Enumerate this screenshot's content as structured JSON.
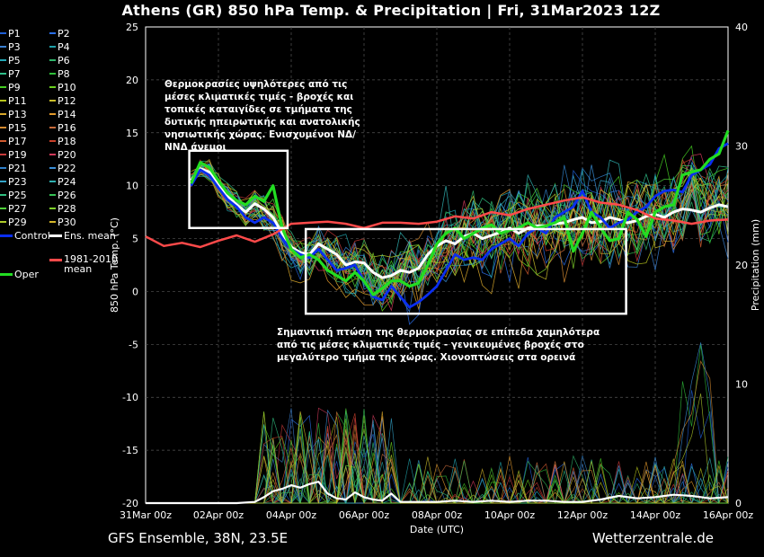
{
  "title": "Athens  (GR)  850 hPa Temp. & Precipitation | Fri, 31Mar2023 12Z",
  "footer": {
    "left": "GFS Ensemble, 38N, 23.5E",
    "right": "Wetterzentrale.de"
  },
  "annotations": {
    "top": "Θερμοκρασίες υψηλότερες από τις μέσες κλιματικές τιμές - βροχές και τοπικές καταιγίδες σε τμήματα της δυτικής ηπειρωτικής και ανατολικής νησιωτικής χώρας. Ενισχυμένοι ΝΔ/ΝΝΔ άνεμοι",
    "bottom": "Σημαντική πτώση της θερμοκρασίας σε επίπεδα χαμηλότερα από τις μέσες κλιματικές τιμές - γενικευμένες βροχές στο μεγαλύτερο τμήμα της χώρας. Χιονοπτώσεις στα ορεινά"
  },
  "legend": [
    {
      "label": "P1",
      "color": "#1f5fd6"
    },
    {
      "label": "P2",
      "color": "#2a6fe8"
    },
    {
      "label": "P3",
      "color": "#3a7fd0"
    },
    {
      "label": "P4",
      "color": "#1fa0a8"
    },
    {
      "label": "P5",
      "color": "#22a7b5"
    },
    {
      "label": "P6",
      "color": "#2fb46a"
    },
    {
      "label": "P7",
      "color": "#2fbf8a"
    },
    {
      "label": "P8",
      "color": "#2fbf3a"
    },
    {
      "label": "P9",
      "color": "#44cc22"
    },
    {
      "label": "P10",
      "color": "#6ad11f"
    },
    {
      "label": "P11",
      "color": "#b7c41c"
    },
    {
      "label": "P12",
      "color": "#c9bd2a"
    },
    {
      "label": "P13",
      "color": "#d9a82a"
    },
    {
      "label": "P14",
      "color": "#e39a2b"
    },
    {
      "label": "P15",
      "color": "#d48a30"
    },
    {
      "label": "P16",
      "color": "#c76a3a"
    },
    {
      "label": "P17",
      "color": "#d05a2f"
    },
    {
      "label": "P18",
      "color": "#c8402a"
    },
    {
      "label": "P19",
      "color": "#c83a3a"
    },
    {
      "label": "P20",
      "color": "#d03a5a"
    },
    {
      "label": "P21",
      "color": "#2f7fc8"
    },
    {
      "label": "P22",
      "color": "#3a8fd8"
    },
    {
      "label": "P23",
      "color": "#33a3c8"
    },
    {
      "label": "P24",
      "color": "#2fb0b0"
    },
    {
      "label": "P25",
      "color": "#2fbf80"
    },
    {
      "label": "P26",
      "color": "#35c155"
    },
    {
      "label": "P27",
      "color": "#4fcf3a"
    },
    {
      "label": "P28",
      "color": "#7ed02a"
    },
    {
      "label": "P29",
      "color": "#b0cc2a"
    },
    {
      "label": "P30",
      "color": "#d6b82a"
    },
    {
      "label": "Control",
      "color": "#0a2ef0"
    },
    {
      "label": "Ens. mean",
      "color": "#ffffff"
    },
    {
      "label": "1981-2010 mean",
      "color": "#ff4a4a"
    },
    {
      "label": "Oper",
      "color": "#22dd22"
    }
  ],
  "chart_data": {
    "type": "line",
    "xlabel": "Date (UTC)",
    "ylabel": "850 hPa Temp. (°C)",
    "y2label": "Precipitation (mm)",
    "ylim": [
      -20,
      25
    ],
    "y2lim": [
      0,
      40
    ],
    "x_range_days": [
      0,
      16
    ],
    "xticks": [
      "31Mar 00z",
      "02Apr 00z",
      "04Apr 00z",
      "06Apr 00z",
      "08Apr 00z",
      "10Apr 00z",
      "12Apr 00z",
      "14Apr 00z",
      "16Apr 00z"
    ],
    "yticks": [
      25,
      20,
      15,
      10,
      5,
      0,
      -5,
      -10,
      -15,
      -20
    ],
    "y2ticks": [
      40,
      30,
      20,
      10,
      0
    ],
    "grid": true,
    "boxes": [
      {
        "day_start": 1.2,
        "day_end": 3.9,
        "t_top": 13.3,
        "t_bottom": 6.0
      },
      {
        "day_start": 4.4,
        "day_end": 13.2,
        "t_top": 5.9,
        "t_bottom": -2.1
      }
    ],
    "series": [
      {
        "name": "Ens. mean",
        "color": "#ffffff",
        "x": [
          1.25,
          1.5,
          1.75,
          2.0,
          2.25,
          2.5,
          2.75,
          3.0,
          3.25,
          3.5,
          3.75,
          4.0,
          4.25,
          4.5,
          4.75,
          5.0,
          5.25,
          5.5,
          5.75,
          6.0,
          6.25,
          6.5,
          6.75,
          7.0,
          7.25,
          7.5,
          7.75,
          8.0,
          8.25,
          8.5,
          8.75,
          9.0,
          9.25,
          9.5,
          9.75,
          10.0,
          10.25,
          10.5,
          10.75,
          11.0,
          11.25,
          11.5,
          11.75,
          12.0,
          12.25,
          12.5,
          12.75,
          13.0,
          13.25,
          13.5,
          13.75,
          14.0,
          14.25,
          14.5,
          14.75,
          15.0,
          15.25,
          15.5,
          15.75,
          16.0
        ],
        "y": [
          10.5,
          11.6,
          11.3,
          10.0,
          9.0,
          8.2,
          7.5,
          8.3,
          7.8,
          7.0,
          5.5,
          4.2,
          3.7,
          3.5,
          4.5,
          4.0,
          3.5,
          2.5,
          2.8,
          2.7,
          1.8,
          1.3,
          1.5,
          2.0,
          1.8,
          2.2,
          3.5,
          4.3,
          4.8,
          4.5,
          5.2,
          5.5,
          5.0,
          5.3,
          5.6,
          6.0,
          5.5,
          6.0,
          6.2,
          6.2,
          6.4,
          6.5,
          6.8,
          7.0,
          6.5,
          6.6,
          7.0,
          6.8,
          6.5,
          6.7,
          7.1,
          7.3,
          7.0,
          7.5,
          7.8,
          7.7,
          7.5,
          7.9,
          8.2,
          8.0
        ]
      },
      {
        "name": "Control",
        "color": "#0a2ef0",
        "x": [
          1.25,
          1.5,
          1.75,
          2.0,
          2.25,
          2.5,
          2.75,
          3.0,
          3.25,
          3.5,
          3.75,
          4.0,
          4.25,
          4.5,
          4.75,
          5.0,
          5.25,
          5.5,
          5.75,
          6.0,
          6.25,
          6.5,
          6.75,
          7.0,
          7.25,
          7.5,
          7.75,
          8.0,
          8.25,
          8.5,
          8.75,
          9.0,
          9.25,
          9.5,
          9.75,
          10.0,
          10.25,
          10.5,
          10.75,
          11.0,
          11.25,
          11.5,
          11.75,
          12.0,
          12.25,
          12.5,
          12.75,
          13.0,
          13.25,
          13.5,
          13.75,
          14.0,
          14.25,
          14.5,
          14.75,
          15.0,
          15.25,
          15.5,
          15.75,
          16.0
        ],
        "y": [
          10.0,
          11.5,
          11.0,
          9.8,
          8.7,
          8.0,
          7.0,
          6.5,
          7.0,
          6.5,
          5.0,
          4.0,
          3.5,
          3.2,
          4.0,
          3.0,
          2.0,
          2.2,
          2.5,
          1.0,
          -0.5,
          -0.8,
          0.5,
          -0.5,
          -1.5,
          -1.0,
          -0.3,
          0.5,
          2.0,
          3.5,
          3.0,
          3.2,
          3.0,
          4.0,
          4.5,
          5.0,
          4.3,
          5.5,
          6.0,
          5.5,
          7.0,
          7.5,
          8.0,
          9.5,
          7.5,
          7.0,
          6.0,
          6.5,
          6.8,
          7.5,
          8.0,
          9.0,
          9.5,
          9.6,
          9.4,
          11.0,
          11.5,
          12.0,
          13.5,
          14.0
        ]
      },
      {
        "name": "Oper",
        "color": "#22dd22",
        "x": [
          1.25,
          1.5,
          1.75,
          2.0,
          2.25,
          2.5,
          2.75,
          3.0,
          3.25,
          3.5,
          3.75,
          4.0,
          4.25,
          4.5,
          4.75,
          5.0,
          5.25,
          5.5,
          5.75,
          6.0,
          6.25,
          6.5,
          6.75,
          7.0,
          7.25,
          7.5,
          7.75,
          8.0,
          8.25,
          8.5,
          8.75,
          9.0,
          9.25,
          9.5,
          9.75,
          10.0,
          10.25,
          10.5,
          10.75,
          11.0,
          11.25,
          11.5,
          11.75,
          12.0,
          12.25,
          12.5,
          12.75,
          13.0,
          13.25,
          13.5,
          13.75,
          14.0,
          14.25,
          14.5,
          14.75,
          15.0,
          15.25,
          15.5,
          15.75,
          16.0
        ],
        "y": [
          10.2,
          12.2,
          11.7,
          10.5,
          9.3,
          8.6,
          8.2,
          9.0,
          8.5,
          10.0,
          6.0,
          4.0,
          3.2,
          3.5,
          3.0,
          2.0,
          1.5,
          1.0,
          1.8,
          1.0,
          -0.3,
          0.3,
          1.0,
          1.0,
          0.5,
          0.8,
          2.5,
          4.5,
          5.5,
          6.0,
          5.0,
          5.5,
          6.0,
          6.3,
          5.5,
          5.8,
          6.0,
          6.5,
          6.0,
          6.2,
          6.5,
          7.0,
          3.8,
          5.5,
          7.5,
          6.0,
          4.8,
          5.0,
          7.5,
          6.8,
          5.2,
          7.5,
          8.0,
          8.2,
          11.0,
          11.3,
          11.5,
          12.5,
          13.0,
          15.2
        ]
      },
      {
        "name": "1981-2010 mean",
        "color": "#ff4a4a",
        "x": [
          0,
          0.5,
          1.0,
          1.5,
          2.0,
          2.5,
          3.0,
          3.5,
          4.0,
          4.5,
          5.0,
          5.5,
          6.0,
          6.5,
          7.0,
          7.5,
          8.0,
          8.5,
          9.0,
          9.5,
          10.0,
          10.5,
          11.0,
          11.5,
          12.0,
          12.5,
          13.0,
          13.5,
          14.0,
          14.5,
          15.0,
          15.5,
          16.0
        ],
        "y": [
          5.2,
          4.3,
          4.6,
          4.2,
          4.8,
          5.3,
          4.7,
          5.4,
          6.4,
          6.5,
          6.6,
          6.4,
          6.0,
          6.5,
          6.5,
          6.4,
          6.6,
          7.1,
          6.9,
          7.5,
          7.2,
          7.8,
          8.2,
          8.6,
          8.9,
          8.4,
          8.2,
          7.7,
          6.9,
          6.7,
          6.4,
          6.7,
          6.8
        ]
      },
      {
        "name": "Ens. mean precip",
        "color": "#ffffff",
        "axis": "y2",
        "x": [
          0,
          1,
          2,
          2.5,
          3,
          3.25,
          3.5,
          3.75,
          4,
          4.25,
          4.5,
          4.75,
          5,
          5.25,
          5.5,
          5.75,
          6,
          6.25,
          6.5,
          6.75,
          7,
          7.5,
          8,
          8.5,
          9,
          9.5,
          10,
          10.5,
          11,
          11.5,
          12,
          12.5,
          13,
          13.5,
          14,
          14.5,
          15,
          15.5,
          16
        ],
        "y": [
          0,
          0,
          0,
          0,
          0.1,
          0.5,
          1.0,
          1.2,
          1.5,
          1.3,
          1.6,
          1.8,
          0.8,
          0.4,
          0.3,
          0.9,
          0.5,
          0.3,
          0.2,
          0.8,
          0.1,
          0.1,
          0.1,
          0.2,
          0.1,
          0.2,
          0.1,
          0.2,
          0.2,
          0.1,
          0.1,
          0.3,
          0.6,
          0.4,
          0.5,
          0.7,
          0.6,
          0.4,
          0.5
        ]
      }
    ]
  }
}
